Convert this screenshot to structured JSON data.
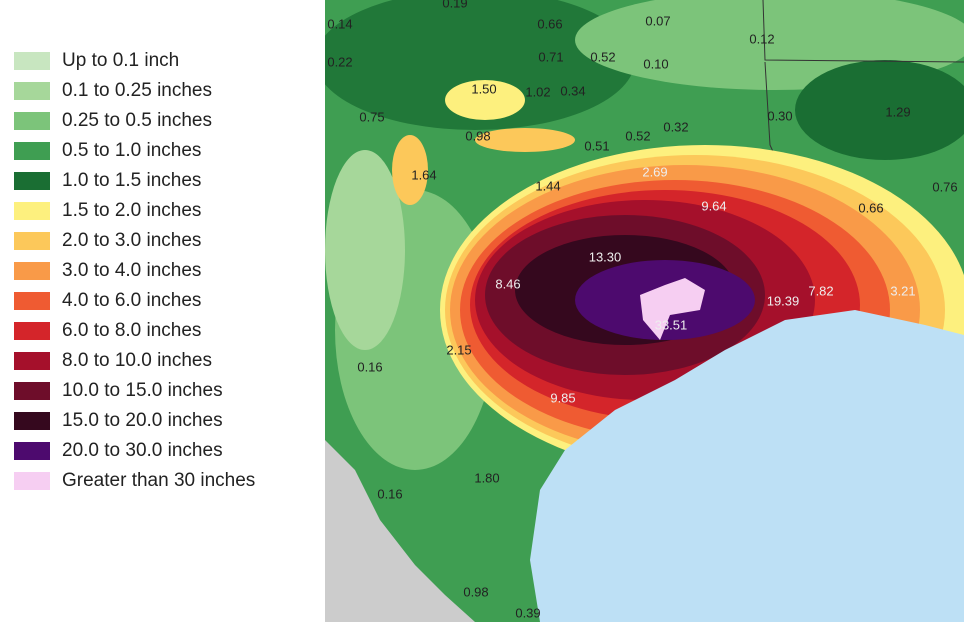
{
  "legend": {
    "items": [
      {
        "label": "Up to 0.1 inch",
        "color": "#c8e6c0"
      },
      {
        "label": "0.1 to 0.25 inches",
        "color": "#a6d79a"
      },
      {
        "label": "0.25 to 0.5 inches",
        "color": "#7cc47a"
      },
      {
        "label": "0.5 to 1.0 inches",
        "color": "#3f9e52"
      },
      {
        "label": "1.0 to 1.5 inches",
        "color": "#1a6e33"
      },
      {
        "label": "1.5 to 2.0 inches",
        "color": "#fdf07e"
      },
      {
        "label": "2.0 to 3.0 inches",
        "color": "#fcc85a"
      },
      {
        "label": "3.0 to 4.0 inches",
        "color": "#f99a48"
      },
      {
        "label": "4.0 to 6.0 inches",
        "color": "#ef5b32"
      },
      {
        "label": "6.0 to 8.0 inches",
        "color": "#d4252a"
      },
      {
        "label": "8.0 to 10.0 inches",
        "color": "#a5102b"
      },
      {
        "label": "10.0 to 15.0 inches",
        "color": "#6e0d2a"
      },
      {
        "label": "15.0 to 20.0 inches",
        "color": "#35081e"
      },
      {
        "label": "20.0 to 30.0 inches",
        "color": "#4d0a6e"
      },
      {
        "label": "Greater than 30 inches",
        "color": "#f6cef2"
      }
    ]
  },
  "map": {
    "labels": [
      "0.14",
      "0.19",
      "0.66",
      "0.07",
      "0.12",
      "0.22",
      "0.71",
      "0.52",
      "0.10",
      "1.50",
      "1.02",
      "0.34",
      "0.75",
      "0.98",
      "0.51",
      "0.52",
      "0.32",
      "0.30",
      "1.29",
      "1.64",
      "1.44",
      "2.69",
      "0.76",
      "9.64",
      "0.66",
      "13.30",
      "8.46",
      "19.39",
      "7.82",
      "3.21",
      "33.51",
      "2.15",
      "0.16",
      "9.85",
      "1.80",
      "0.16",
      "0.98",
      "0.39"
    ]
  }
}
